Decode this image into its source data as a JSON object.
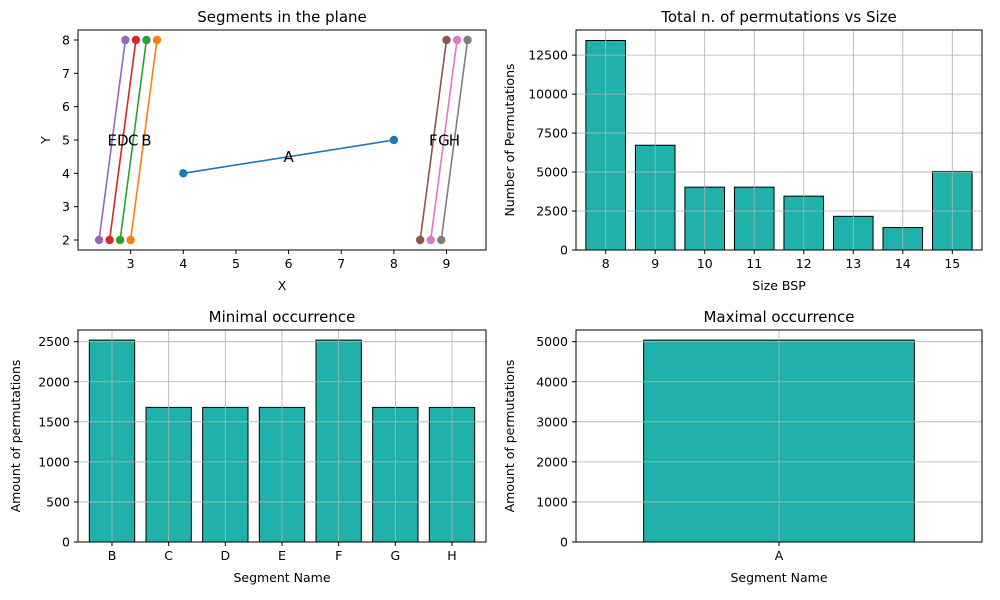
{
  "colors": {
    "bar_fill": "#20b2aa",
    "bar_edge": "#000000",
    "grid": "#b0b0b0",
    "tab10": [
      "#1f77b4",
      "#ff7f0e",
      "#2ca02c",
      "#d62728",
      "#9467bd",
      "#8c564b",
      "#e377c2",
      "#7f7f7f"
    ]
  },
  "chart_data": [
    {
      "type": "line",
      "title": "Segments in the plane",
      "xlabel": "X",
      "ylabel": "Y",
      "xlim": [
        2.0,
        9.75
      ],
      "ylim": [
        1.7,
        8.3
      ],
      "xticks": [
        3,
        4,
        5,
        6,
        7,
        8,
        9
      ],
      "yticks": [
        2,
        3,
        4,
        5,
        6,
        7,
        8
      ],
      "grid": false,
      "series": [
        {
          "name": "A",
          "x": [
            4.0,
            8.0
          ],
          "y": [
            4,
            5
          ],
          "label_pos": [
            6.0,
            4.5
          ]
        },
        {
          "name": "B",
          "x": [
            3.0,
            3.5
          ],
          "y": [
            2,
            8
          ],
          "label_pos": [
            3.3,
            5.0
          ]
        },
        {
          "name": "C",
          "x": [
            2.8,
            3.3
          ],
          "y": [
            2,
            8
          ],
          "label_pos": [
            3.05,
            5.0
          ]
        },
        {
          "name": "D",
          "x": [
            2.6,
            3.1
          ],
          "y": [
            2,
            8
          ],
          "label_pos": [
            2.85,
            5.0
          ]
        },
        {
          "name": "E",
          "x": [
            2.4,
            2.9
          ],
          "y": [
            2,
            8
          ],
          "label_pos": [
            2.65,
            5.0
          ]
        },
        {
          "name": "F",
          "x": [
            8.5,
            9.0
          ],
          "y": [
            2,
            8
          ],
          "label_pos": [
            8.75,
            5.0
          ]
        },
        {
          "name": "G",
          "x": [
            8.7,
            9.2
          ],
          "y": [
            2,
            8
          ],
          "label_pos": [
            8.95,
            5.0
          ]
        },
        {
          "name": "H",
          "x": [
            8.9,
            9.4
          ],
          "y": [
            2,
            8
          ],
          "label_pos": [
            9.15,
            5.0
          ]
        }
      ]
    },
    {
      "type": "bar",
      "title": "Total n. of permutations vs Size",
      "xlabel": "Size BSP",
      "ylabel": "Number of Permutations",
      "categories": [
        "8",
        "9",
        "10",
        "11",
        "12",
        "13",
        "14",
        "15"
      ],
      "values": [
        13440,
        6720,
        4032,
        4032,
        3456,
        2160,
        1440,
        5040
      ],
      "ylim": [
        0,
        14112
      ],
      "yticks": [
        0,
        2500,
        5000,
        7500,
        10000,
        12500
      ],
      "ytick_labels": [
        "0",
        "2500",
        "5000",
        "7500",
        "10000",
        "12500"
      ],
      "grid": true
    },
    {
      "type": "bar",
      "title": "Minimal occurrence",
      "xlabel": "Segment Name",
      "ylabel": "Amount of permutations",
      "categories": [
        "B",
        "C",
        "D",
        "E",
        "F",
        "G",
        "H"
      ],
      "values": [
        2520,
        1680,
        1680,
        1680,
        2520,
        1680,
        1680
      ],
      "ylim": [
        0,
        2646
      ],
      "yticks": [
        0,
        500,
        1000,
        1500,
        2000,
        2500
      ],
      "ytick_labels": [
        "0",
        "500",
        "1000",
        "1500",
        "2000",
        "2500"
      ],
      "grid": true
    },
    {
      "type": "bar",
      "title": "Maximal occurrence",
      "xlabel": "Segment Name",
      "ylabel": "Amount of permutations",
      "categories": [
        "A"
      ],
      "values": [
        5040
      ],
      "ylim": [
        0,
        5292
      ],
      "yticks": [
        0,
        1000,
        2000,
        3000,
        4000,
        5000
      ],
      "ytick_labels": [
        "0",
        "1000",
        "2000",
        "3000",
        "4000",
        "5000"
      ],
      "grid": true
    }
  ]
}
